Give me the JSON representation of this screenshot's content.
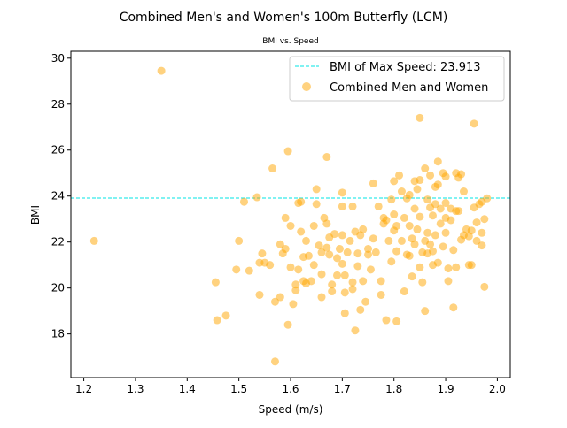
{
  "chart_data": {
    "type": "scatter",
    "title": "Combined Men's and Women's 100m Butterfly (LCM)",
    "subtitle": "BMI vs. Speed",
    "xlabel": "Speed (m/s)",
    "ylabel": "BMI",
    "xlim": [
      1.175,
      2.025
    ],
    "ylim": [
      16.1,
      30.3
    ],
    "xticks": [
      1.2,
      1.3,
      1.4,
      1.5,
      1.6,
      1.7,
      1.8,
      1.9,
      2.0
    ],
    "xtick_labels": [
      "1.2",
      "1.3",
      "1.4",
      "1.5",
      "1.6",
      "1.7",
      "1.8",
      "1.9",
      "2.0"
    ],
    "yticks": [
      18,
      20,
      22,
      24,
      26,
      28,
      30
    ],
    "ytick_labels": [
      "18",
      "20",
      "22",
      "24",
      "26",
      "28",
      "30"
    ],
    "grid": false,
    "legend_position": "top-right",
    "reference_line": {
      "label": "BMI of Max Speed: 23.913",
      "y": 23.913,
      "color": "#00e5e5",
      "style": "dashed"
    },
    "series": [
      {
        "name": "Combined Men and Women",
        "color": "#ffa500",
        "opacity": 0.5,
        "points": [
          [
            1.22,
            22.05
          ],
          [
            1.35,
            29.45
          ],
          [
            1.455,
            20.25
          ],
          [
            1.458,
            18.6
          ],
          [
            1.475,
            18.8
          ],
          [
            1.495,
            20.8
          ],
          [
            1.5,
            22.05
          ],
          [
            1.51,
            23.75
          ],
          [
            1.52,
            20.75
          ],
          [
            1.535,
            23.95
          ],
          [
            1.54,
            21.1
          ],
          [
            1.54,
            19.7
          ],
          [
            1.545,
            21.5
          ],
          [
            1.55,
            21.1
          ],
          [
            1.56,
            21.0
          ],
          [
            1.565,
            25.2
          ],
          [
            1.57,
            19.4
          ],
          [
            1.57,
            16.8
          ],
          [
            1.58,
            19.6
          ],
          [
            1.58,
            21.9
          ],
          [
            1.585,
            21.5
          ],
          [
            1.59,
            21.7
          ],
          [
            1.59,
            23.05
          ],
          [
            1.595,
            25.95
          ],
          [
            1.595,
            18.4
          ],
          [
            1.6,
            22.7
          ],
          [
            1.6,
            20.9
          ],
          [
            1.605,
            19.3
          ],
          [
            1.61,
            20.15
          ],
          [
            1.61,
            19.9
          ],
          [
            1.615,
            23.7
          ],
          [
            1.615,
            20.8
          ],
          [
            1.62,
            22.45
          ],
          [
            1.62,
            23.75
          ],
          [
            1.625,
            21.35
          ],
          [
            1.625,
            20.3
          ],
          [
            1.63,
            22.05
          ],
          [
            1.63,
            20.2
          ],
          [
            1.635,
            21.4
          ],
          [
            1.64,
            20.3
          ],
          [
            1.645,
            22.7
          ],
          [
            1.645,
            21.0
          ],
          [
            1.65,
            24.3
          ],
          [
            1.65,
            23.65
          ],
          [
            1.655,
            21.85
          ],
          [
            1.66,
            21.55
          ],
          [
            1.66,
            20.6
          ],
          [
            1.66,
            19.6
          ],
          [
            1.665,
            23.05
          ],
          [
            1.67,
            22.8
          ],
          [
            1.67,
            25.7
          ],
          [
            1.67,
            21.75
          ],
          [
            1.675,
            22.2
          ],
          [
            1.675,
            21.45
          ],
          [
            1.68,
            20.15
          ],
          [
            1.68,
            19.85
          ],
          [
            1.685,
            22.35
          ],
          [
            1.69,
            21.3
          ],
          [
            1.69,
            20.55
          ],
          [
            1.695,
            21.7
          ],
          [
            1.7,
            24.15
          ],
          [
            1.7,
            23.55
          ],
          [
            1.7,
            22.3
          ],
          [
            1.7,
            21.05
          ],
          [
            1.705,
            20.55
          ],
          [
            1.705,
            19.8
          ],
          [
            1.705,
            18.9
          ],
          [
            1.71,
            21.55
          ],
          [
            1.715,
            22.05
          ],
          [
            1.72,
            23.55
          ],
          [
            1.72,
            20.25
          ],
          [
            1.72,
            19.95
          ],
          [
            1.725,
            22.45
          ],
          [
            1.725,
            18.15
          ],
          [
            1.73,
            21.5
          ],
          [
            1.73,
            20.95
          ],
          [
            1.735,
            22.3
          ],
          [
            1.735,
            19.05
          ],
          [
            1.74,
            22.55
          ],
          [
            1.74,
            20.3
          ],
          [
            1.745,
            19.4
          ],
          [
            1.75,
            21.7
          ],
          [
            1.75,
            21.45
          ],
          [
            1.755,
            20.8
          ],
          [
            1.76,
            22.15
          ],
          [
            1.76,
            24.55
          ],
          [
            1.765,
            21.55
          ],
          [
            1.77,
            23.55
          ],
          [
            1.775,
            20.3
          ],
          [
            1.775,
            19.7
          ],
          [
            1.78,
            22.8
          ],
          [
            1.78,
            23.05
          ],
          [
            1.785,
            22.95
          ],
          [
            1.785,
            18.6
          ],
          [
            1.79,
            22.05
          ],
          [
            1.795,
            23.85
          ],
          [
            1.795,
            21.15
          ],
          [
            1.8,
            22.5
          ],
          [
            1.8,
            23.2
          ],
          [
            1.8,
            24.65
          ],
          [
            1.805,
            22.7
          ],
          [
            1.805,
            21.6
          ],
          [
            1.805,
            18.55
          ],
          [
            1.81,
            24.9
          ],
          [
            1.815,
            24.2
          ],
          [
            1.815,
            22.05
          ],
          [
            1.82,
            23.05
          ],
          [
            1.82,
            19.85
          ],
          [
            1.825,
            21.45
          ],
          [
            1.825,
            23.9
          ],
          [
            1.83,
            24.05
          ],
          [
            1.83,
            22.7
          ],
          [
            1.83,
            21.4
          ],
          [
            1.835,
            22.15
          ],
          [
            1.835,
            20.5
          ],
          [
            1.84,
            24.65
          ],
          [
            1.84,
            23.45
          ],
          [
            1.84,
            21.9
          ],
          [
            1.845,
            24.3
          ],
          [
            1.845,
            22.55
          ],
          [
            1.85,
            27.4
          ],
          [
            1.85,
            24.7
          ],
          [
            1.85,
            23.1
          ],
          [
            1.85,
            20.9
          ],
          [
            1.855,
            21.55
          ],
          [
            1.855,
            20.25
          ],
          [
            1.86,
            25.2
          ],
          [
            1.86,
            22.05
          ],
          [
            1.86,
            19.0
          ],
          [
            1.865,
            23.85
          ],
          [
            1.865,
            22.4
          ],
          [
            1.865,
            21.5
          ],
          [
            1.87,
            24.9
          ],
          [
            1.87,
            23.5
          ],
          [
            1.87,
            21.9
          ],
          [
            1.875,
            23.15
          ],
          [
            1.875,
            21.6
          ],
          [
            1.875,
            21.0
          ],
          [
            1.88,
            24.4
          ],
          [
            1.88,
            23.65
          ],
          [
            1.88,
            22.3
          ],
          [
            1.885,
            25.5
          ],
          [
            1.885,
            24.5
          ],
          [
            1.885,
            21.1
          ],
          [
            1.89,
            23.45
          ],
          [
            1.89,
            22.8
          ],
          [
            1.895,
            25.0
          ],
          [
            1.895,
            21.8
          ],
          [
            1.9,
            24.85
          ],
          [
            1.9,
            23.7
          ],
          [
            1.9,
            23.05
          ],
          [
            1.9,
            22.4
          ],
          [
            1.905,
            20.85
          ],
          [
            1.905,
            20.3
          ],
          [
            1.91,
            23.45
          ],
          [
            1.91,
            22.95
          ],
          [
            1.915,
            21.65
          ],
          [
            1.915,
            19.15
          ],
          [
            1.92,
            25.0
          ],
          [
            1.92,
            23.35
          ],
          [
            1.92,
            20.9
          ],
          [
            1.925,
            24.8
          ],
          [
            1.925,
            23.35
          ],
          [
            1.93,
            24.95
          ],
          [
            1.93,
            22.1
          ],
          [
            1.935,
            24.2
          ],
          [
            1.935,
            22.3
          ],
          [
            1.94,
            22.55
          ],
          [
            1.945,
            22.25
          ],
          [
            1.945,
            21.0
          ],
          [
            1.95,
            22.5
          ],
          [
            1.95,
            21.0
          ],
          [
            1.955,
            27.15
          ],
          [
            1.955,
            23.5
          ],
          [
            1.96,
            22.85
          ],
          [
            1.96,
            22.05
          ],
          [
            1.965,
            23.65
          ],
          [
            1.97,
            22.4
          ],
          [
            1.97,
            21.85
          ],
          [
            1.97,
            23.75
          ],
          [
            1.975,
            20.05
          ],
          [
            1.975,
            23.0
          ],
          [
            1.98,
            23.9
          ]
        ]
      }
    ]
  }
}
